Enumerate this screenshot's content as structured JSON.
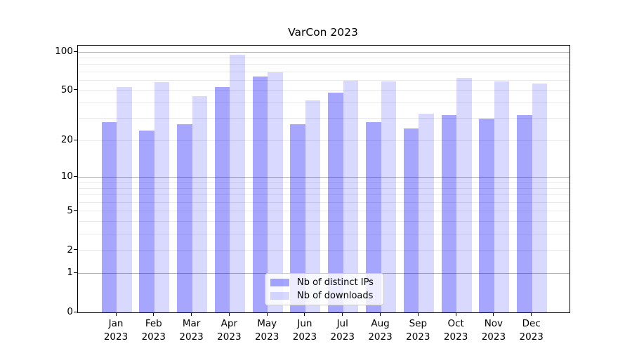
{
  "chart_data": {
    "type": "bar",
    "title": "VarCon 2023",
    "categories": [
      "Jan",
      "Feb",
      "Mar",
      "Apr",
      "May",
      "Jun",
      "Jul",
      "Aug",
      "Sep",
      "Oct",
      "Nov",
      "Dec"
    ],
    "x_year": "2023",
    "series": [
      {
        "name": "Nb of distinct IPs",
        "color": "rgba(0,0,255,0.35)",
        "color_hex_on_white": "#a6a6ff",
        "values": [
          28,
          24,
          27,
          53,
          64,
          27,
          48,
          28,
          25,
          32,
          30,
          32
        ]
      },
      {
        "name": "Nb of downloads",
        "color": "rgba(0,0,255,0.15)",
        "color_hex_on_white": "#d9d9ff",
        "values": [
          53,
          58,
          45,
          95,
          69,
          42,
          60,
          59,
          33,
          63,
          59,
          57
        ]
      }
    ],
    "yscale": "log1p",
    "ylim": [
      0,
      110
    ],
    "yticks": [
      100,
      50,
      20,
      10,
      5,
      2,
      1,
      0
    ],
    "gridlines": {
      "dark": [
        1,
        10,
        100
      ],
      "light": [
        2,
        3,
        4,
        5,
        6,
        7,
        8,
        9,
        20,
        30,
        40,
        50,
        60,
        70,
        80,
        90
      ]
    },
    "legend_position": "lower center",
    "grid": true,
    "xlabel": "",
    "ylabel": ""
  },
  "colors": {
    "spine": "#000000",
    "grid_dark": "#b3b3b3",
    "grid_light": "#e9e9e9",
    "legend_border": "#cccccc",
    "text": "#000000"
  }
}
